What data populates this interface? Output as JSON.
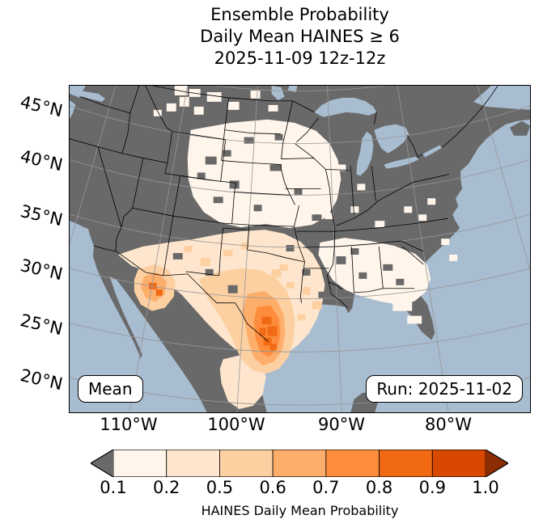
{
  "title": {
    "line1": "Ensemble Probability",
    "line2": "Daily Mean HAINES ≥ 6",
    "line3": "2025-11-09 12z-12z"
  },
  "axes": {
    "lat_ticks": [
      "45°N",
      "40°N",
      "35°N",
      "30°N",
      "25°N",
      "20°N"
    ],
    "lon_ticks": [
      "110°W",
      "100°W",
      "90°W",
      "80°W"
    ]
  },
  "annotations": {
    "mean": "Mean",
    "run": "Run: 2025-11-02"
  },
  "colorbar": {
    "label": "HAINES Daily Mean Probability",
    "ticks": [
      "0.1",
      "0.2",
      "0.5",
      "0.6",
      "0.7",
      "0.8",
      "0.9",
      "1.0"
    ],
    "segment_colors": [
      "#fff5eb",
      "#fee6ce",
      "#fdd0a2",
      "#fdae6b",
      "#fd8d3c",
      "#f16913",
      "#d94801"
    ],
    "under_arrow_color": "#696969",
    "over_arrow_color": "#8c2d04"
  },
  "map_colors": {
    "ocean": "#a9bdd1",
    "land": "#696969",
    "graticule": "#969696"
  },
  "chart_data": {
    "type": "heatmap",
    "subtype": "geographic-probability-map",
    "title": "Ensemble Probability Daily Mean HAINES ≥ 6",
    "valid_period": "2025-11-09 12z-12z",
    "model_run": "2025-11-02",
    "statistic": "Mean",
    "colorbar_label": "HAINES Daily Mean Probability",
    "probability_levels": [
      0.1,
      0.2,
      0.5,
      0.6,
      0.7,
      0.8,
      0.9,
      1.0
    ],
    "map_extent": {
      "lat_ticks_deg_n": [
        45,
        40,
        35,
        30,
        25,
        20
      ],
      "lon_ticks_deg_w": [
        110,
        100,
        90,
        80
      ]
    },
    "regions": [
      {
        "area": "West Texas / Big Bend into Chihuahua and Coahuila (northern Mexico)",
        "probability": "0.5-0.9, field maximum"
      },
      {
        "area": "Southeast Arizona / Sonora border",
        "probability": "0.5-0.8"
      },
      {
        "area": "New Mexico, Texas panhandle and central Texas",
        "probability": "0.2-0.5"
      },
      {
        "area": "Sierra Madre Occidental, northwest Mexico",
        "probability": "0.2-0.6"
      },
      {
        "area": "Central High Plains (Wyoming, Colorado, Nebraska, Kansas)",
        "probability": "0.1-0.2"
      },
      {
        "area": "Southeast US (Mississippi, Alabama, Georgia, Tennessee)",
        "probability": "0.1-0.2"
      },
      {
        "area": "Pacific Northwest interior and southern Canada (scattered cells)",
        "probability": "0.1-0.2"
      },
      {
        "area": "Remaining land shaded dark gray",
        "probability": "below 0.1 (masked)"
      }
    ]
  }
}
